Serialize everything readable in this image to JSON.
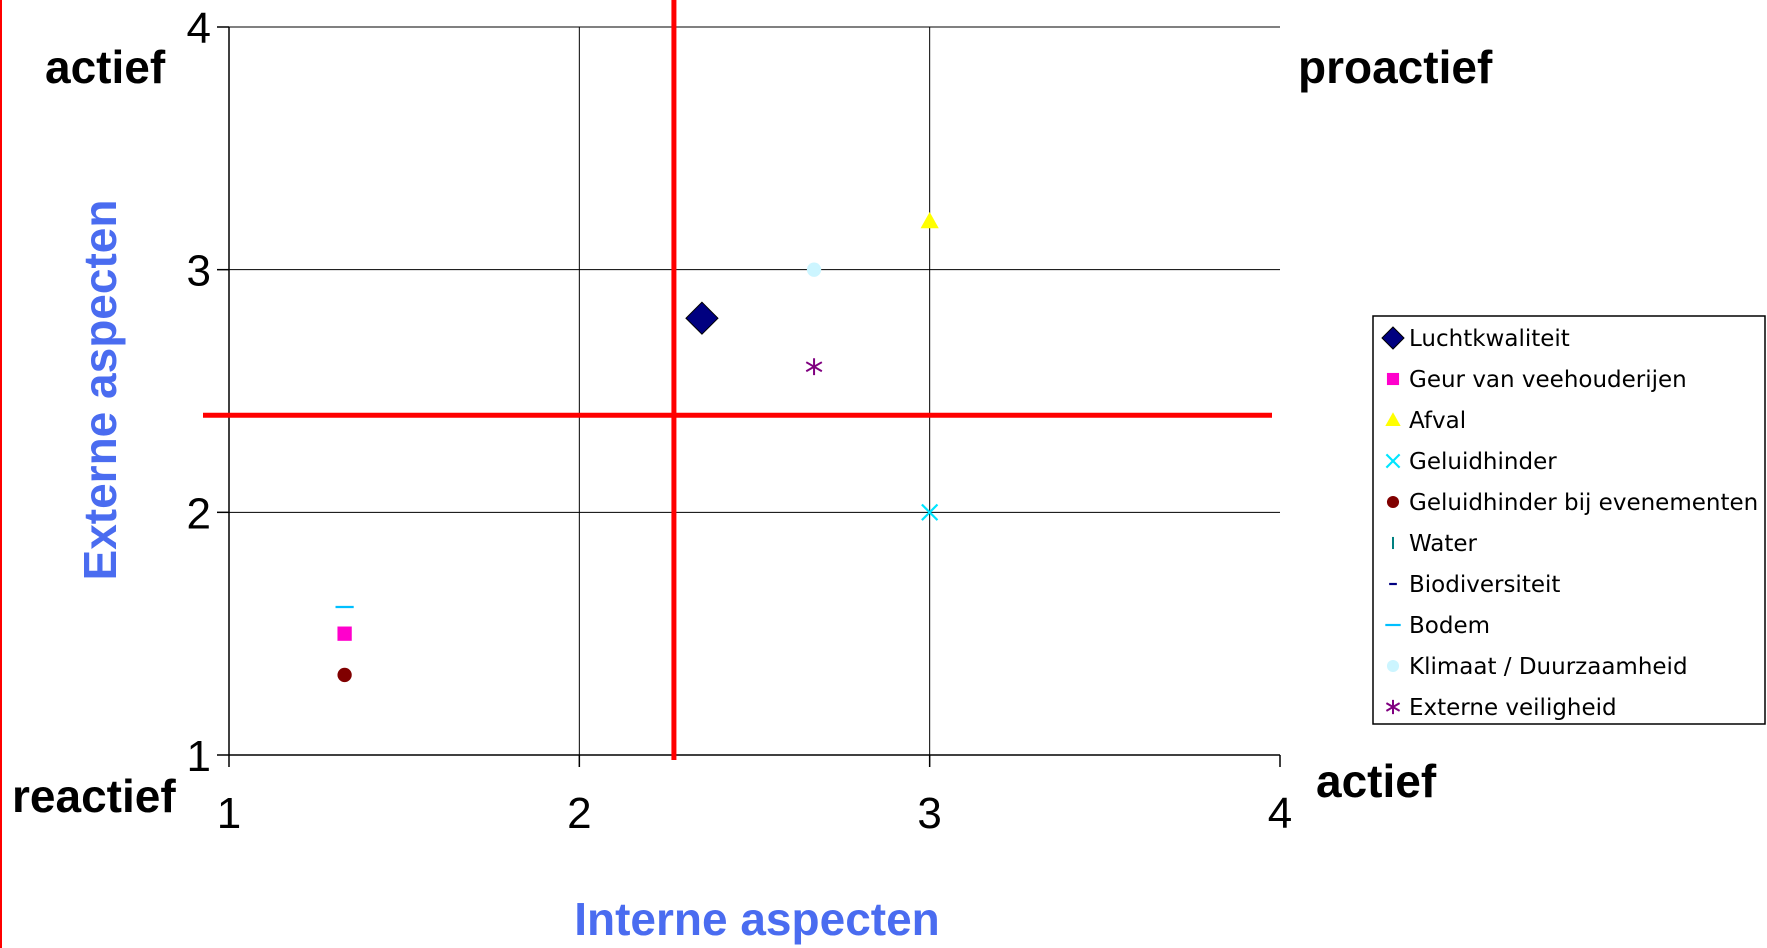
{
  "chart_data": {
    "type": "scatter",
    "xlabel": "Interne aspecten",
    "ylabel": "Externe aspecten",
    "xlim": [
      1,
      4
    ],
    "ylim": [
      1,
      4
    ],
    "x_ticks": [
      "1",
      "2",
      "3",
      "4"
    ],
    "y_ticks": [
      "1",
      "2",
      "3",
      "4"
    ],
    "grid": "major gridlines on both axes",
    "corner_labels": {
      "top_left": "actief",
      "top_right": "proactief",
      "bottom_left": "reactief",
      "bottom_right": "actief"
    },
    "quadrant_lines": {
      "x": 2.27,
      "y": 2.4,
      "color": "#ff0000"
    },
    "legend_position": "right",
    "series": [
      {
        "name": "Luchtkwaliteit",
        "marker": "diamond",
        "color": "#000080",
        "points": [
          [
            2.35,
            2.8
          ]
        ]
      },
      {
        "name": "Geur van veehouderijen",
        "marker": "square",
        "color": "#ff00cc",
        "points": [
          [
            1.33,
            1.5
          ]
        ]
      },
      {
        "name": "Afval",
        "marker": "triangle",
        "color": "#ffff00",
        "points": [
          [
            3.0,
            3.2
          ]
        ]
      },
      {
        "name": "Geluidhinder",
        "marker": "x",
        "color": "#00e5ff",
        "points": [
          [
            3.0,
            2.0
          ]
        ]
      },
      {
        "name": "Geluidhinder  bij  evenementen",
        "marker": "circle",
        "color": "#800000",
        "points": [
          [
            1.33,
            1.33
          ]
        ]
      },
      {
        "name": "Water",
        "marker": "vbar",
        "color": "#008080",
        "points": []
      },
      {
        "name": "Biodiversiteit",
        "marker": "dash",
        "color": "#000080",
        "points": []
      },
      {
        "name": "Bodem",
        "marker": "hline",
        "color": "#00bfff",
        "points": [
          [
            1.33,
            1.61
          ]
        ]
      },
      {
        "name": "Klimaat  /  Duurzaamheid",
        "marker": "circle",
        "color": "#ccf5ff",
        "points": [
          [
            2.67,
            3.0
          ]
        ]
      },
      {
        "name": "Externe  veiligheid",
        "marker": "star",
        "color": "#800080",
        "points": [
          [
            2.67,
            2.6
          ]
        ]
      }
    ]
  }
}
